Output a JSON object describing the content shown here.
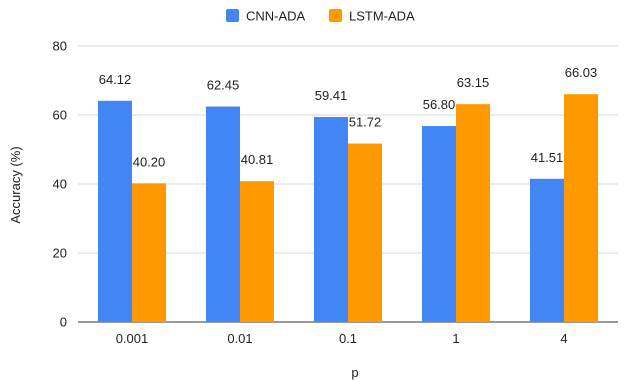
{
  "chart_data": {
    "type": "bar",
    "title": "",
    "xlabel": "p",
    "ylabel": "Accuracy (%)",
    "categories": [
      "0.001",
      "0.01",
      "0.1",
      "1",
      "4"
    ],
    "series": [
      {
        "name": "CNN-ADA",
        "color": "#4285f4",
        "values": [
          64.12,
          62.45,
          59.41,
          56.8,
          41.51
        ],
        "labels": [
          "64.12",
          "62.45",
          "59.41",
          "56.80",
          "41.51"
        ]
      },
      {
        "name": "LSTM-ADA",
        "color": "#ff9900",
        "values": [
          40.2,
          40.81,
          51.72,
          63.15,
          66.03
        ],
        "labels": [
          "40.20",
          "40.81",
          "51.72",
          "63.15",
          "66.03"
        ]
      }
    ],
    "ylim": [
      0,
      80
    ],
    "yticks": [
      0,
      20,
      40,
      60,
      80
    ],
    "grid": true,
    "legend_position": "top-center"
  }
}
